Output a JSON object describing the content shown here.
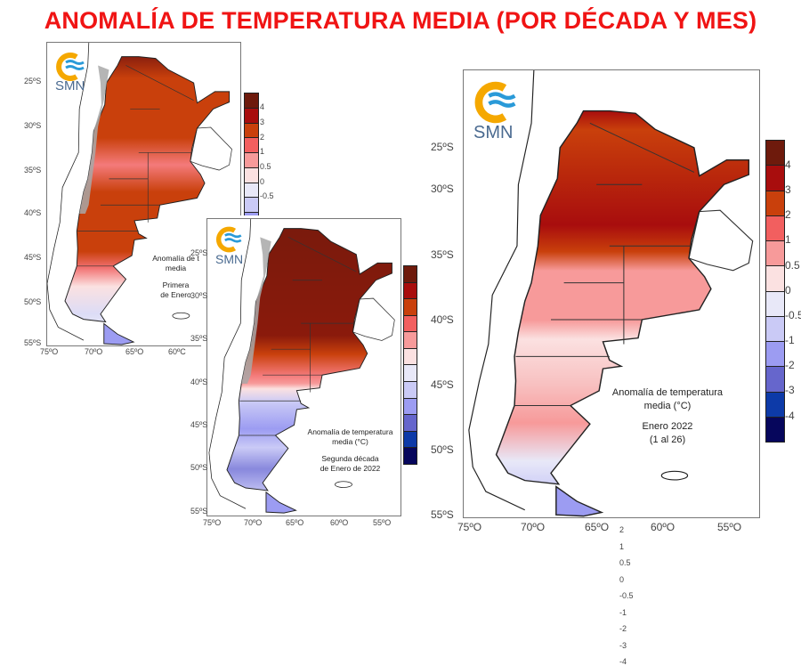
{
  "title": "ANOMALÍA DE TEMPERATURA MEDIA (POR DÉCADA Y MES)",
  "colors": {
    "title": "#f01414",
    "colorbar": [
      "#6e1a0c",
      "#a80d0d",
      "#c9400c",
      "#f25f5f",
      "#f79a9a",
      "#fbe1e1",
      "#e8e8f8",
      "#cacaf6",
      "#9c9cf2",
      "#6666cc",
      "#0d3aa8",
      "#06065c"
    ]
  },
  "logo_text": "SMN",
  "colorbar_labels": [
    "4",
    "3",
    "2",
    "1",
    "0.5",
    "0",
    "-0.5",
    "-1",
    "-2",
    "-3",
    "-4"
  ],
  "panels": [
    {
      "lat_labels": [
        "25ºS",
        "30ºS",
        "35ºS",
        "40ºS",
        "45ºS",
        "50ºS",
        "55ºS"
      ],
      "lon_labels": [
        "75ºO",
        "70ºO",
        "65ºO",
        "60ºC"
      ],
      "colorbar_labels": [
        "4",
        "3",
        "2",
        "1",
        "0.5",
        "0",
        "-0.5"
      ],
      "annotation": [
        "Anomalía de t",
        "media",
        "Primera",
        "de Enero"
      ]
    },
    {
      "lat_labels": [
        "25ºS",
        "30ºS",
        "35ºS",
        "40ºS",
        "45ºS",
        "50ºS",
        "55ºS"
      ],
      "lon_labels": [
        "75ºO",
        "70ºO",
        "65ºO",
        "60ºO",
        "55ºO"
      ],
      "annotation": [
        "Anomalía de temperatura",
        "media (°C)",
        "Segunda década",
        "de Enero de 2022"
      ]
    },
    {
      "lat_labels": [
        "25ºS",
        "30ºS",
        "35ºS",
        "40ºS",
        "45ºS",
        "50ºS",
        "55ºS"
      ],
      "lon_labels": [
        "75ºO",
        "70ºO",
        "65ºO",
        "60ºO",
        "55ºO"
      ],
      "colorbar_labels": [
        "4",
        "3",
        "2",
        "1",
        "0.5",
        "0",
        "-0.5",
        "-1",
        "-2",
        "-3",
        "-4"
      ],
      "annotation": [
        "Anomalía de temperatura",
        "media (°C)",
        "Enero 2022",
        "(1 al 26)"
      ]
    }
  ]
}
